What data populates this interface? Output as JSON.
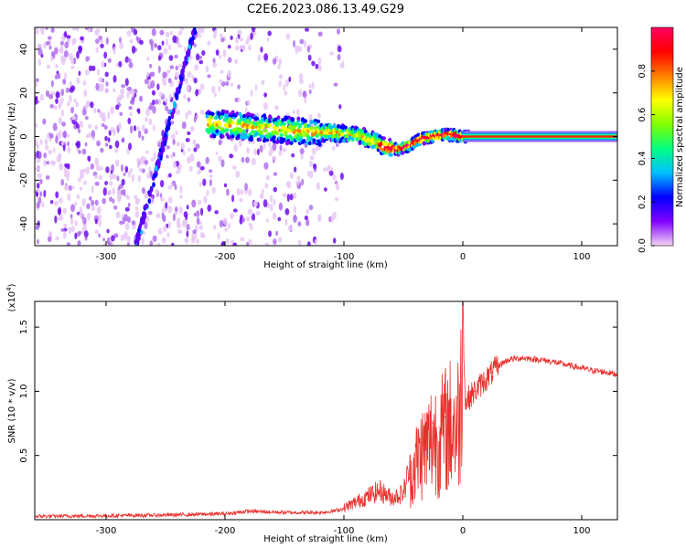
{
  "title": "C2E6.2023.086.13.49.G29",
  "chart_data": [
    {
      "type": "heatmap",
      "xlabel": "Height of straight line (km)",
      "ylabel": "Frequency (Hz)",
      "xlim": [
        -360,
        130
      ],
      "ylim": [
        -50,
        50
      ],
      "xticks": [
        -300,
        -200,
        -100,
        0,
        100
      ],
      "yticks": [
        -40,
        -20,
        0,
        20,
        40
      ],
      "colorbar": {
        "label": "Normalized spectral amplitude",
        "range": [
          0,
          1
        ],
        "ticks": [
          0.0,
          0.2,
          0.4,
          0.6,
          0.8
        ],
        "tick_labels": [
          "0.0",
          "0.2",
          "0.4",
          "0.6",
          "0.8"
        ],
        "colormap": [
          "#f4d6f4",
          "#8000ff",
          "#0000ff",
          "#00c0ff",
          "#00ff80",
          "#80ff00",
          "#ffff00",
          "#ff8000",
          "#ff0000",
          "#ff0060"
        ]
      },
      "ridge": {
        "name": "main frequency track",
        "x": [
          -210,
          -190,
          -170,
          -150,
          -130,
          -110,
          -95,
          -85,
          -75,
          -65,
          -55,
          -45,
          -35,
          -25,
          -15,
          -5,
          0,
          130
        ],
        "y": [
          6,
          5,
          4,
          3,
          2,
          2,
          1,
          0,
          -2,
          -5,
          -6,
          -4,
          -1,
          0,
          1,
          0.5,
          0,
          0
        ]
      },
      "diagonal_track": {
        "x": [
          -275,
          -265,
          -255,
          -245,
          -235,
          -225
        ],
        "y": [
          -50,
          -30,
          -10,
          10,
          30,
          50
        ]
      }
    },
    {
      "type": "line",
      "xlabel": "Height of straight line (km)",
      "ylabel": "SNR (10 * v/v)",
      "y_multiplier": "(x10",
      "y_multiplier_exp": "4",
      "y_multiplier_close": ")",
      "xlim": [
        -360,
        130
      ],
      "ylim": [
        0,
        1.7
      ],
      "xticks": [
        -300,
        -200,
        -100,
        0,
        100
      ],
      "yticks": [
        0.5,
        1.0,
        1.5
      ],
      "ytick_labels": [
        "0.5",
        "1.0",
        "1.5"
      ],
      "color": "#e8302c",
      "series": [
        {
          "x": [
            -360,
            -300,
            -250,
            -200,
            -180,
            -150,
            -120,
            -110,
            -100,
            -90,
            -80,
            -70,
            -60,
            -50,
            -45,
            -40,
            -35,
            -30,
            -25,
            -20,
            -15,
            -10,
            -5,
            -2,
            0,
            2,
            5,
            10,
            15,
            20,
            25,
            30,
            35,
            40,
            50,
            60,
            70,
            80,
            90,
            100,
            110,
            120,
            130
          ],
          "y": [
            0.02,
            0.025,
            0.03,
            0.04,
            0.06,
            0.05,
            0.05,
            0.06,
            0.08,
            0.12,
            0.16,
            0.2,
            0.15,
            0.18,
            0.35,
            0.5,
            0.6,
            0.65,
            0.75,
            0.72,
            0.8,
            0.85,
            0.82,
            1.0,
            1.7,
            0.9,
            0.95,
            1.0,
            1.05,
            1.1,
            1.15,
            1.2,
            1.23,
            1.25,
            1.26,
            1.25,
            1.24,
            1.22,
            1.2,
            1.18,
            1.16,
            1.15,
            1.13
          ]
        }
      ]
    }
  ]
}
